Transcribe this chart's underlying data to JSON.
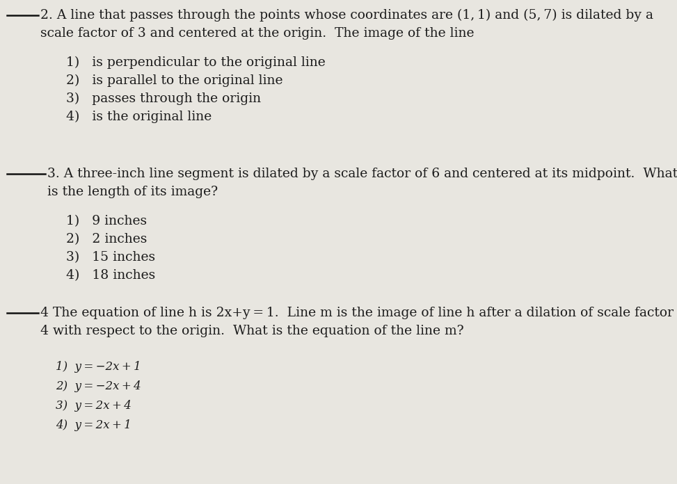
{
  "background_color": "#e8e6e0",
  "fig_width": 9.73,
  "fig_height": 6.96,
  "dpi": 100,
  "q2_line1": "_2. A line that passes through the points whose coordinates are (1, 1) and (5, 7) is dilated by a",
  "q2_line2": "scale factor of 3 and centered at the origin.  The image of the line",
  "q2_options": [
    "1)   is perpendicular to the original line",
    "2)   is parallel to the original line",
    "3)   passes through the origin",
    "4)   is the original line"
  ],
  "q3_line1": "_3. A three-inch line segment is dilated by a scale factor of 6 and centered at its midpoint.  What",
  "q3_line2": "is the length of its image?",
  "q3_options": [
    "1)   9 inches",
    "2)   2 inches",
    "3)   15 inches",
    "4)   18 inches"
  ],
  "q4_line1": "_4 The equation of line h is 2x+y = 1.  Line m is the image of line h after a dilation of scale factor",
  "q4_line2": "4 with respect to the origin.  What is the equation of the line m?",
  "q4_options": [
    "1)  y = −2x + 1",
    "2)  y = −2x + 4",
    "3)  y = 2x + 4",
    "4)  y = 2x + 1"
  ],
  "text_color": "#1c1c1c",
  "line_color": "#111111",
  "font_size_question": 13.5,
  "font_size_options": 13.5,
  "font_size_q4_options": 12.0
}
